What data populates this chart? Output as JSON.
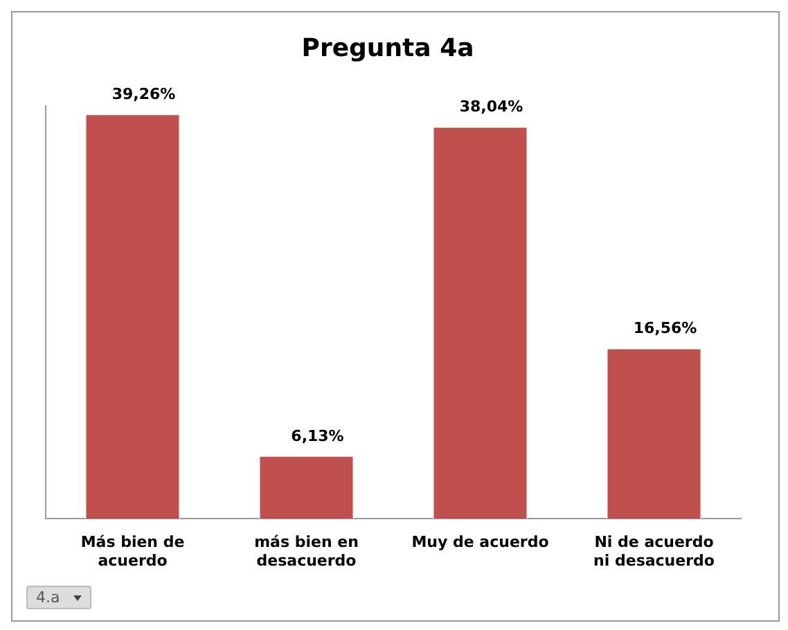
{
  "chart_data": {
    "type": "bar",
    "title": "Pregunta 4a",
    "categories": [
      "Más bien de acuerdo",
      "más bien en desacuerdo",
      "Muy de acuerdo",
      "Ni de acuerdo ni desacuerdo"
    ],
    "values": [
      39.26,
      6.13,
      38.04,
      16.56
    ],
    "value_labels": [
      "39,26%",
      "6,13%",
      "38,04%",
      "16,56%"
    ],
    "color": "#c0504d",
    "annotations": [
      "4.a"
    ]
  }
}
